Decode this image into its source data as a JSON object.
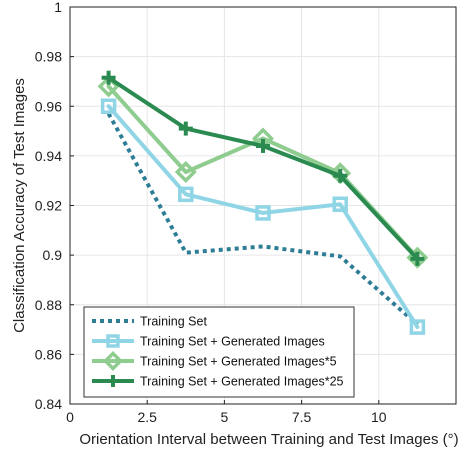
{
  "chart_data": {
    "type": "line",
    "xlabel": "Orientation Interval between Training and Test Images (°)",
    "ylabel": "Classification Accuracy of Test Images",
    "xlim": [
      0,
      12.5
    ],
    "ylim": [
      0.84,
      1.0
    ],
    "xticks": [
      0,
      2.5,
      5,
      7.5,
      10
    ],
    "xtick_labels": [
      "0",
      "2.5",
      "5",
      "7.5",
      "10"
    ],
    "yticks": [
      0.84,
      0.86,
      0.88,
      0.9,
      0.92,
      0.94,
      0.96,
      0.98,
      1.0
    ],
    "ytick_labels": [
      "0.84",
      "0.86",
      "0.88",
      "0.9",
      "0.92",
      "0.94",
      "0.96",
      "0.98",
      "1"
    ],
    "grid": true,
    "legend_position": "lower-left",
    "series": [
      {
        "name": "Training Set",
        "color": "#2e7d96",
        "style": "dotted",
        "marker": "none",
        "x": [
          1.25,
          3.75,
          6.25,
          8.75,
          11.25
        ],
        "y": [
          0.957,
          0.901,
          0.9035,
          0.8995,
          0.872
        ]
      },
      {
        "name": "Training Set + Generated Images",
        "color": "#8fd5e6",
        "style": "solid",
        "marker": "square",
        "x": [
          1.25,
          3.75,
          6.25,
          8.75,
          11.25
        ],
        "y": [
          0.96,
          0.9245,
          0.917,
          0.9205,
          0.871
        ]
      },
      {
        "name": "Training Set + Generated Images*5",
        "color": "#8fcc8f",
        "style": "solid",
        "marker": "diamond",
        "x": [
          1.25,
          3.75,
          6.25,
          8.75,
          11.25
        ],
        "y": [
          0.968,
          0.9335,
          0.947,
          0.933,
          0.899
        ]
      },
      {
        "name": "Training Set + Generated Images*25",
        "color": "#2a8a50",
        "style": "solid",
        "marker": "plus",
        "x": [
          1.25,
          3.75,
          6.25,
          8.75,
          11.25
        ],
        "y": [
          0.9715,
          0.951,
          0.944,
          0.932,
          0.8985
        ]
      }
    ]
  }
}
